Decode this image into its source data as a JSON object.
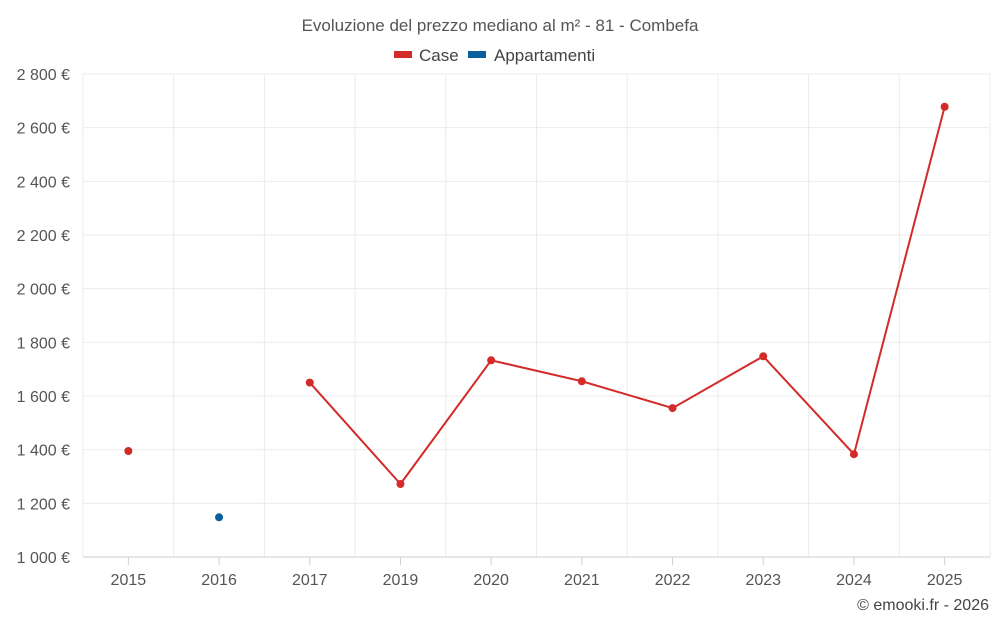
{
  "chart_data": {
    "type": "line",
    "title": "Evoluzione del prezzo mediano al m² - 81 - Combefa",
    "categories": [
      "2015",
      "2016",
      "2017",
      "2019",
      "2020",
      "2021",
      "2022",
      "2023",
      "2024",
      "2025"
    ],
    "y_ticks": [
      "1 000 €",
      "1 200 €",
      "1 400 €",
      "1 600 €",
      "1 800 €",
      "2 000 €",
      "2 200 €",
      "2 400 €",
      "2 600 €",
      "2 800 €"
    ],
    "ylim": [
      1000,
      2800
    ],
    "grid": true,
    "legend_position": "top-center",
    "series": [
      {
        "name": "Case",
        "color": "#d32a2a",
        "values": [
          1395,
          null,
          1650,
          1272,
          1733,
          1655,
          1555,
          1748,
          1383,
          2678
        ]
      },
      {
        "name": "Appartamenti",
        "color": "#0a5f9e",
        "values": [
          null,
          1148,
          null,
          null,
          null,
          null,
          null,
          null,
          null,
          null
        ]
      }
    ]
  },
  "credit": "© emooki.fr - 2026"
}
